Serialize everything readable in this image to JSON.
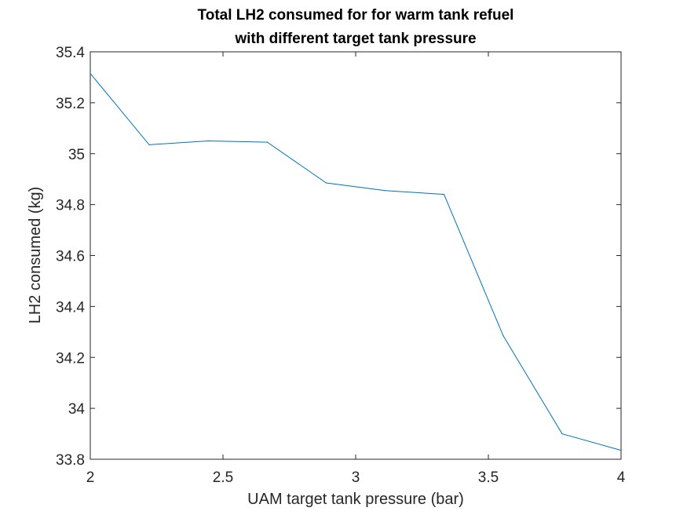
{
  "chart_data": {
    "type": "line",
    "title_lines": [
      "Total LH2 consumed for for warm tank refuel",
      "with different target tank pressure"
    ],
    "xlabel": "UAM target tank pressure (bar)",
    "ylabel": "LH2 consumed (kg)",
    "xlim": [
      2,
      4
    ],
    "ylim": [
      33.8,
      35.4
    ],
    "x_ticks": [
      "2",
      "2.5",
      "3",
      "3.5",
      "4"
    ],
    "y_ticks": [
      "33.8",
      "34",
      "34.2",
      "34.4",
      "34.6",
      "34.8",
      "35",
      "35.2",
      "35.4"
    ],
    "grid": false,
    "series": [
      {
        "color": "#0072BD",
        "x": [
          2.0,
          2.222,
          2.444,
          2.667,
          2.889,
          3.111,
          3.333,
          3.556,
          3.778,
          4.0
        ],
        "y": [
          35.315,
          35.035,
          35.05,
          35.045,
          34.885,
          34.855,
          34.84,
          34.285,
          33.9,
          33.835
        ]
      }
    ]
  }
}
